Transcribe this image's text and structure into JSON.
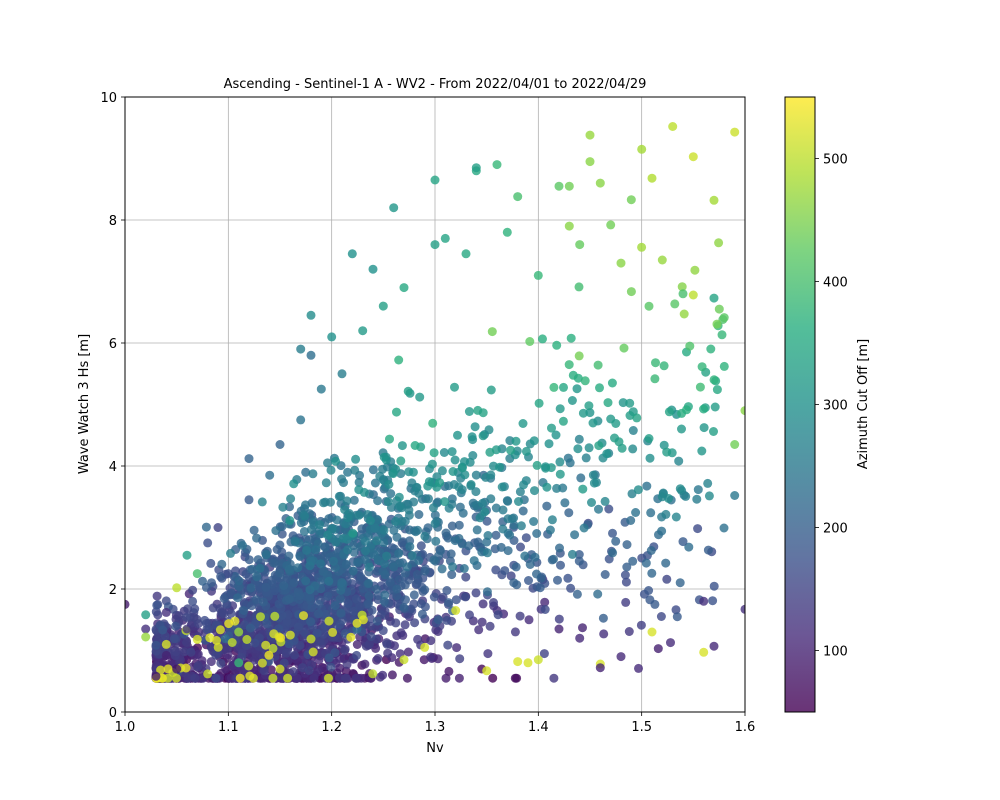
{
  "chart_data": {
    "type": "scatter",
    "title": "Ascending - Sentinel-1 A - WV2 - From 2022/04/01 to 2022/04/29",
    "xlabel": "Nv",
    "ylabel": "Wave Watch 3 Hs [m]",
    "xlim": [
      1.0,
      1.6
    ],
    "ylim": [
      0,
      10
    ],
    "xticks": [
      "1.0",
      "1.1",
      "1.2",
      "1.3",
      "1.4",
      "1.5",
      "1.6"
    ],
    "yticks": [
      "0",
      "2",
      "4",
      "6",
      "8",
      "10"
    ],
    "grid": true,
    "colormap": "viridis",
    "colorbar": {
      "label": "Azimuth Cut Off [m]",
      "range": [
        50,
        550
      ],
      "ticks": [
        "100",
        "200",
        "300",
        "400",
        "500"
      ]
    },
    "points": [
      {
        "x": 1.0,
        "y": 1.75,
        "c": 90
      },
      {
        "x": 1.02,
        "y": 1.35,
        "c": 120
      },
      {
        "x": 1.02,
        "y": 1.58,
        "c": 330
      },
      {
        "x": 1.02,
        "y": 1.22,
        "c": 470
      },
      {
        "x": 1.03,
        "y": 0.58,
        "c": 90
      },
      {
        "x": 1.04,
        "y": 1.62,
        "c": 120
      },
      {
        "x": 1.04,
        "y": 1.1,
        "c": 520
      },
      {
        "x": 1.04,
        "y": 0.92,
        "c": 100
      },
      {
        "x": 1.05,
        "y": 2.02,
        "c": 500
      },
      {
        "x": 1.05,
        "y": 0.7,
        "c": 80
      },
      {
        "x": 1.06,
        "y": 2.55,
        "c": 330
      },
      {
        "x": 1.06,
        "y": 1.35,
        "c": 130
      },
      {
        "x": 1.07,
        "y": 2.25,
        "c": 400
      },
      {
        "x": 1.07,
        "y": 1.18,
        "c": 520
      },
      {
        "x": 1.08,
        "y": 2.75,
        "c": 170
      },
      {
        "x": 1.08,
        "y": 0.62,
        "c": 510
      },
      {
        "x": 1.09,
        "y": 3.0,
        "c": 150
      },
      {
        "x": 1.1,
        "y": 2.25,
        "c": 170
      },
      {
        "x": 1.11,
        "y": 0.8,
        "c": 380
      },
      {
        "x": 1.11,
        "y": 1.3,
        "c": 470
      },
      {
        "x": 1.12,
        "y": 3.45,
        "c": 190
      },
      {
        "x": 1.12,
        "y": 4.12,
        "c": 210
      },
      {
        "x": 1.14,
        "y": 3.85,
        "c": 230
      },
      {
        "x": 1.15,
        "y": 4.35,
        "c": 210
      },
      {
        "x": 1.15,
        "y": 0.7,
        "c": 520
      },
      {
        "x": 1.16,
        "y": 1.25,
        "c": 520
      },
      {
        "x": 1.17,
        "y": 4.75,
        "c": 240
      },
      {
        "x": 1.17,
        "y": 5.9,
        "c": 260
      },
      {
        "x": 1.18,
        "y": 5.8,
        "c": 230
      },
      {
        "x": 1.18,
        "y": 6.45,
        "c": 290
      },
      {
        "x": 1.19,
        "y": 5.25,
        "c": 250
      },
      {
        "x": 1.2,
        "y": 6.1,
        "c": 300
      },
      {
        "x": 1.21,
        "y": 5.5,
        "c": 260
      },
      {
        "x": 1.22,
        "y": 7.45,
        "c": 300
      },
      {
        "x": 1.23,
        "y": 6.2,
        "c": 320
      },
      {
        "x": 1.24,
        "y": 7.2,
        "c": 300
      },
      {
        "x": 1.25,
        "y": 6.6,
        "c": 330
      },
      {
        "x": 1.26,
        "y": 8.2,
        "c": 310
      },
      {
        "x": 1.27,
        "y": 6.9,
        "c": 350
      },
      {
        "x": 1.27,
        "y": 0.85,
        "c": 510
      },
      {
        "x": 1.29,
        "y": 1.05,
        "c": 520
      },
      {
        "x": 1.3,
        "y": 8.65,
        "c": 340
      },
      {
        "x": 1.3,
        "y": 7.6,
        "c": 330
      },
      {
        "x": 1.31,
        "y": 7.7,
        "c": 340
      },
      {
        "x": 1.32,
        "y": 1.65,
        "c": 520
      },
      {
        "x": 1.33,
        "y": 7.45,
        "c": 350
      },
      {
        "x": 1.34,
        "y": 8.8,
        "c": 350
      },
      {
        "x": 1.34,
        "y": 8.85,
        "c": 330
      },
      {
        "x": 1.35,
        "y": 0.67,
        "c": 520
      },
      {
        "x": 1.36,
        "y": 8.9,
        "c": 380
      },
      {
        "x": 1.37,
        "y": 7.8,
        "c": 370
      },
      {
        "x": 1.38,
        "y": 8.38,
        "c": 400
      },
      {
        "x": 1.38,
        "y": 0.82,
        "c": 520
      },
      {
        "x": 1.39,
        "y": 0.8,
        "c": 520
      },
      {
        "x": 1.4,
        "y": 7.1,
        "c": 380
      },
      {
        "x": 1.4,
        "y": 0.85,
        "c": 510
      },
      {
        "x": 1.42,
        "y": 8.55,
        "c": 420
      },
      {
        "x": 1.43,
        "y": 7.9,
        "c": 460
      },
      {
        "x": 1.43,
        "y": 8.55,
        "c": 440
      },
      {
        "x": 1.44,
        "y": 7.6,
        "c": 430
      },
      {
        "x": 1.45,
        "y": 9.38,
        "c": 470
      },
      {
        "x": 1.45,
        "y": 8.95,
        "c": 460
      },
      {
        "x": 1.46,
        "y": 8.6,
        "c": 460
      },
      {
        "x": 1.46,
        "y": 0.78,
        "c": 520
      },
      {
        "x": 1.47,
        "y": 7.92,
        "c": 440
      },
      {
        "x": 1.48,
        "y": 7.3,
        "c": 460
      },
      {
        "x": 1.49,
        "y": 8.33,
        "c": 440
      },
      {
        "x": 1.5,
        "y": 9.15,
        "c": 480
      },
      {
        "x": 1.51,
        "y": 8.68,
        "c": 490
      },
      {
        "x": 1.51,
        "y": 1.3,
        "c": 520
      },
      {
        "x": 1.52,
        "y": 7.35,
        "c": 470
      },
      {
        "x": 1.53,
        "y": 9.52,
        "c": 500
      },
      {
        "x": 1.54,
        "y": 6.8,
        "c": 400
      },
      {
        "x": 1.55,
        "y": 6.78,
        "c": 500
      },
      {
        "x": 1.55,
        "y": 9.03,
        "c": 510
      },
      {
        "x": 1.56,
        "y": 0.97,
        "c": 520
      },
      {
        "x": 1.56,
        "y": 1.8,
        "c": 120
      },
      {
        "x": 1.57,
        "y": 8.32,
        "c": 480
      },
      {
        "x": 1.57,
        "y": 6.73,
        "c": 340
      },
      {
        "x": 1.58,
        "y": 5.62,
        "c": 370
      },
      {
        "x": 1.59,
        "y": 9.43,
        "c": 510
      },
      {
        "x": 1.59,
        "y": 4.35,
        "c": 440
      },
      {
        "x": 1.59,
        "y": 3.52,
        "c": 250
      },
      {
        "x": 1.6,
        "y": 4.9,
        "c": 460
      },
      {
        "x": 1.6,
        "y": 1.67,
        "c": 120
      },
      {
        "x": 1.57,
        "y": 1.07,
        "c": 110
      },
      {
        "x": 1.54,
        "y": 2.77,
        "c": 190
      },
      {
        "x": 1.52,
        "y": 3.5,
        "c": 280
      },
      {
        "x": 1.48,
        "y": 0.9,
        "c": 110
      },
      {
        "x": 1.46,
        "y": 0.72,
        "c": 100
      },
      {
        "x": 1.44,
        "y": 1.2,
        "c": 110
      },
      {
        "x": 1.42,
        "y": 1.35,
        "c": 100
      }
    ]
  }
}
